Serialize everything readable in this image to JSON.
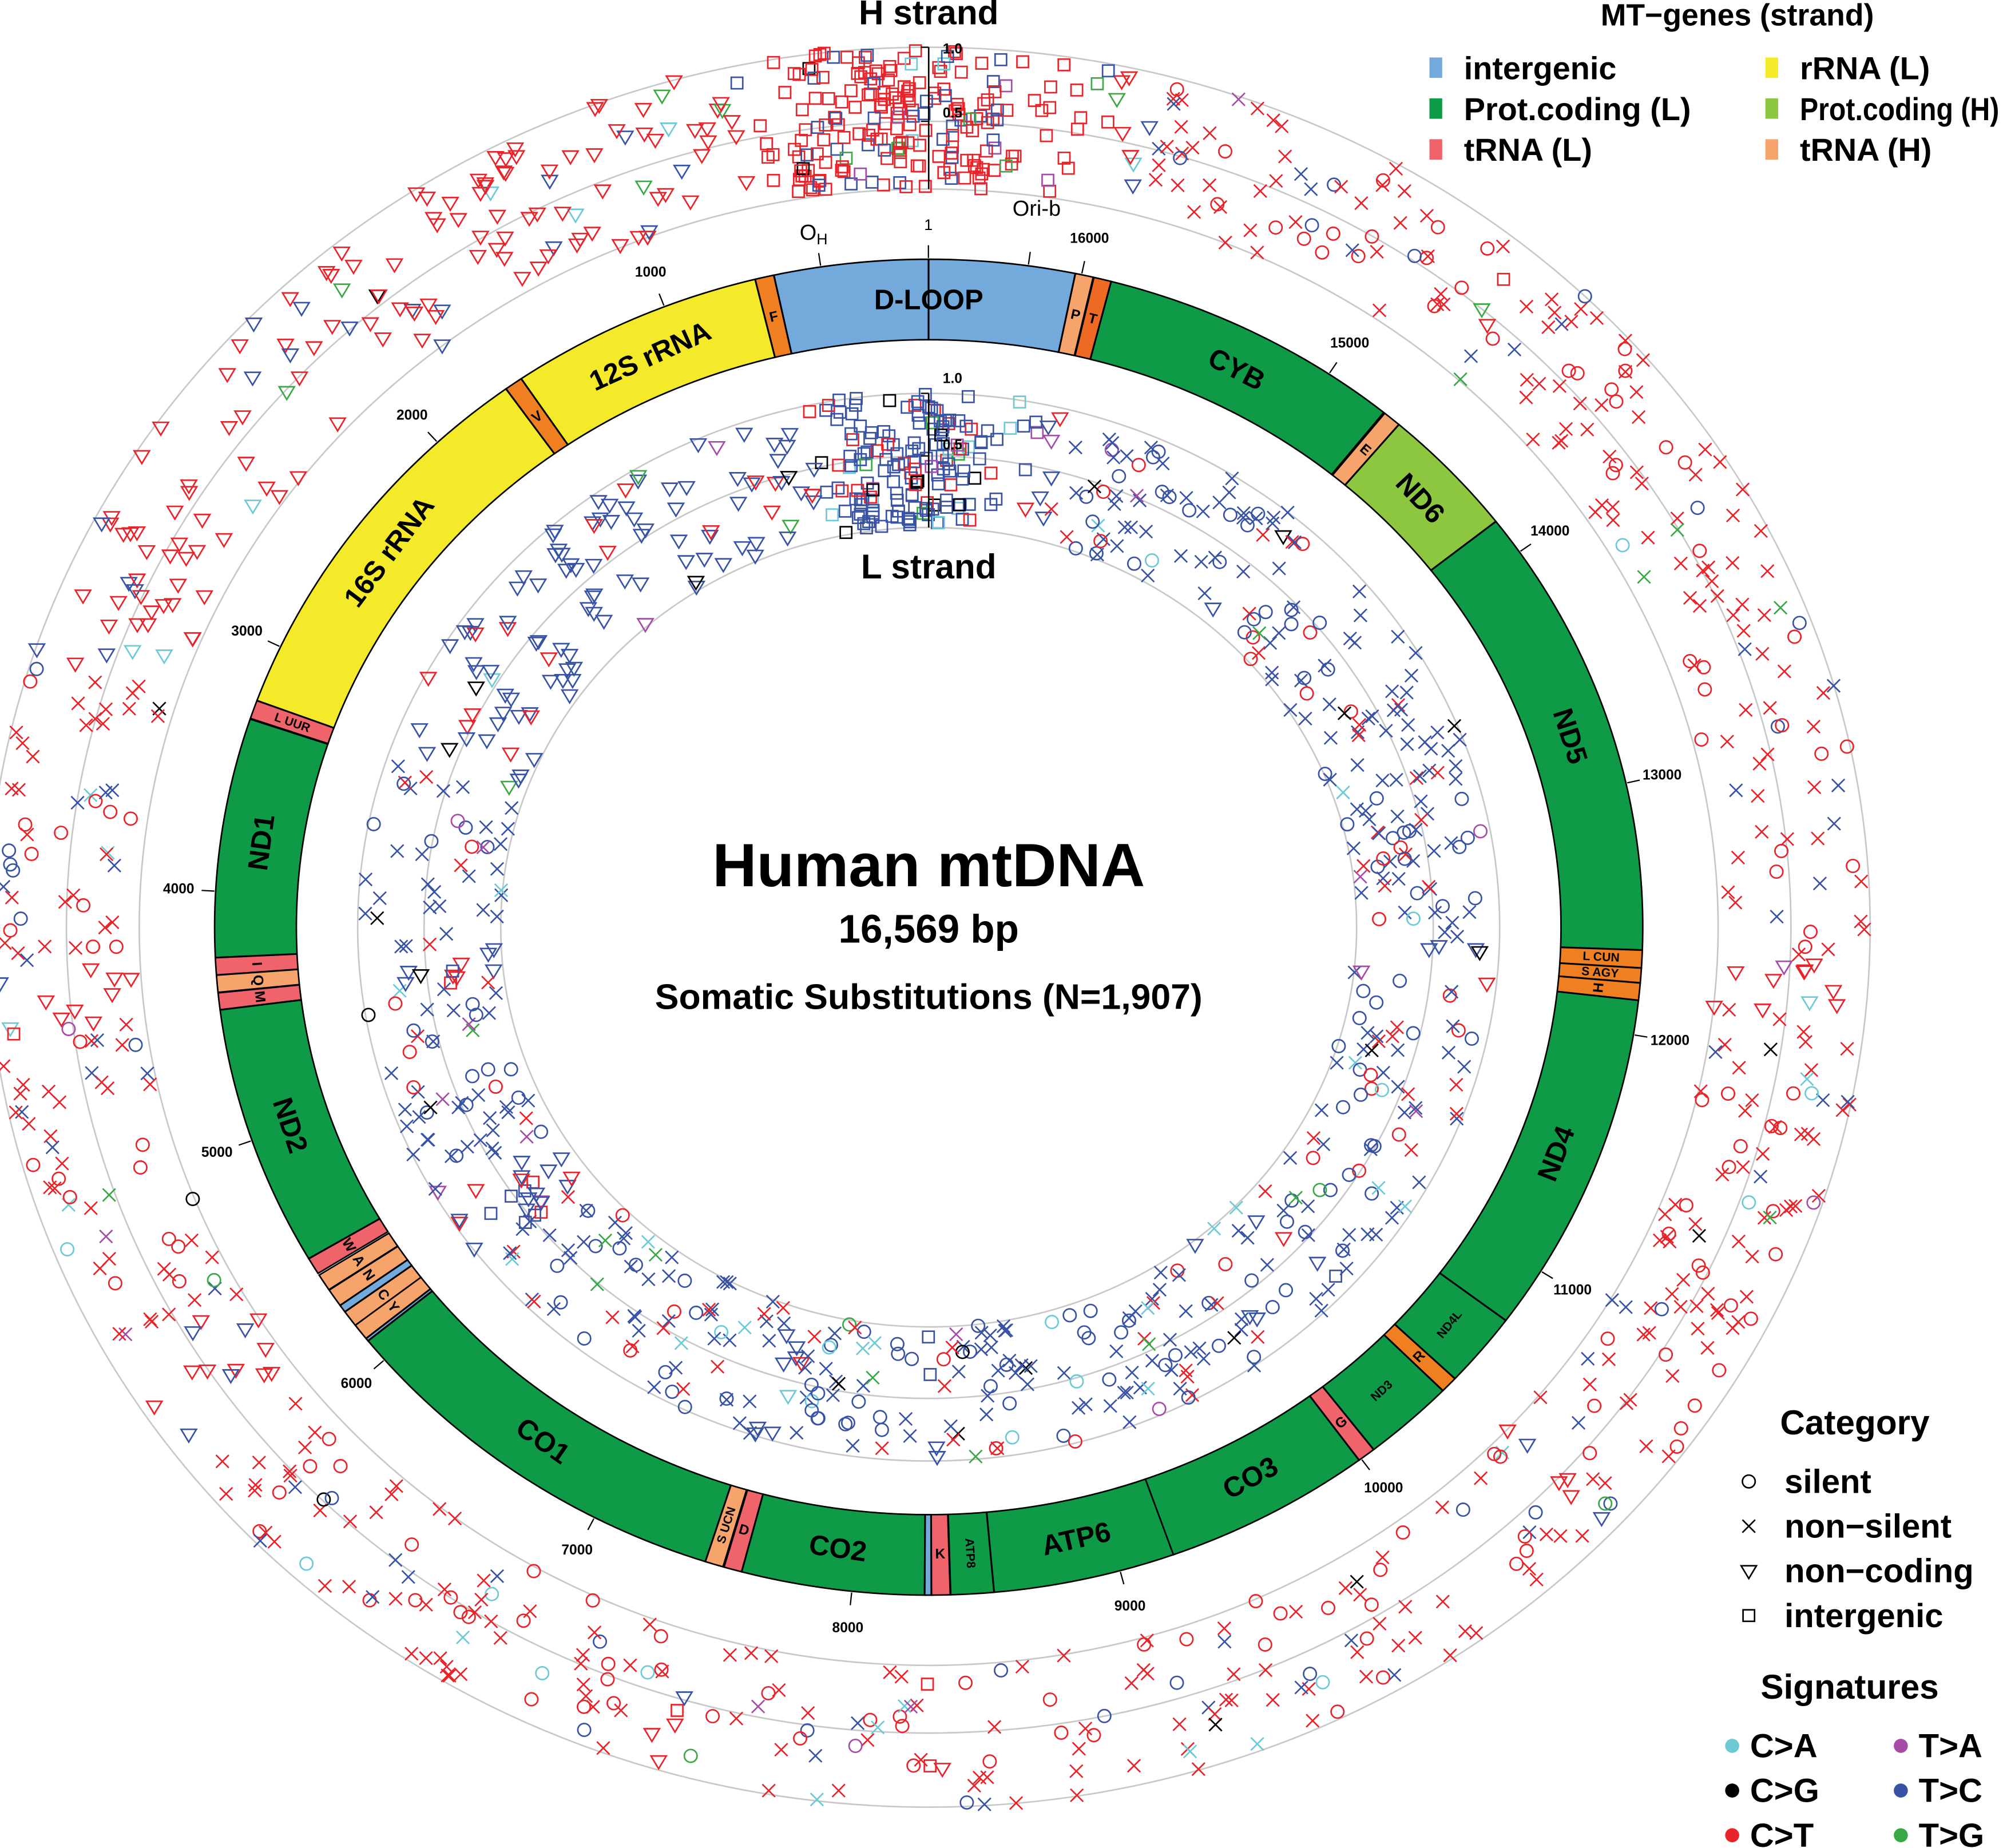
{
  "titles": {
    "h_strand": "H strand",
    "l_strand": "L strand",
    "main": "Human mtDNA",
    "length": "16,569 bp",
    "subtitle": "Somatic Substitutions (N=1,907)"
  },
  "scale_labels": {
    "top": "1.0",
    "mid": "0.5"
  },
  "landmarks": [
    {
      "label": "O",
      "sub": "H",
      "pos": 400
    },
    {
      "label": "1",
      "sub": "",
      "pos": 1
    },
    {
      "label": "Ori-b",
      "sub": "",
      "pos": 16200
    }
  ],
  "chart_data": {
    "type": "circos",
    "genome_length": 16569,
    "position_ticks": [
      "1000",
      "2000",
      "3000",
      "4000",
      "5000",
      "6000",
      "7000",
      "8000",
      "9000",
      "10000",
      "11000",
      "12000",
      "13000",
      "14000",
      "15000",
      "16000"
    ],
    "track_scale": [
      0,
      1.0
    ],
    "tracks": [
      "H strand",
      "L strand"
    ],
    "genes": [
      {
        "label": "D-LOOP",
        "start": 16024,
        "end": 16569,
        "color": "#74a9db",
        "big": true
      },
      {
        "label": "",
        "start": 1,
        "end": 576,
        "color": "#74a9db"
      },
      {
        "label": "F",
        "start": 577,
        "end": 647,
        "color": "#f07f22"
      },
      {
        "label": "12S rRNA",
        "start": 648,
        "end": 1601,
        "color": "#f5ea2a",
        "big": true
      },
      {
        "label": "V",
        "start": 1602,
        "end": 1670,
        "color": "#f07f22"
      },
      {
        "label": "16S rRNA",
        "start": 1671,
        "end": 3229,
        "color": "#f5ea2a",
        "big": true
      },
      {
        "label": "L UUR",
        "start": 3230,
        "end": 3304,
        "color": "#ef646a"
      },
      {
        "label": "ND1",
        "start": 3307,
        "end": 4262,
        "color": "#0f9a48",
        "big": true
      },
      {
        "label": "I",
        "start": 4263,
        "end": 4331,
        "color": "#ef646a"
      },
      {
        "label": "Q",
        "start": 4332,
        "end": 4400,
        "color": "#f6a46c"
      },
      {
        "label": "M",
        "start": 4402,
        "end": 4469,
        "color": "#ef646a"
      },
      {
        "label": "ND2",
        "start": 4470,
        "end": 5511,
        "color": "#0f9a48",
        "big": true
      },
      {
        "label": "W",
        "start": 5512,
        "end": 5579,
        "color": "#ef646a"
      },
      {
        "label": "A",
        "start": 5587,
        "end": 5655,
        "color": "#f6a46c"
      },
      {
        "label": "N",
        "start": 5657,
        "end": 5729,
        "color": "#f6a46c"
      },
      {
        "label": "",
        "start": 5730,
        "end": 5760,
        "color": "#74a9db"
      },
      {
        "label": "C",
        "start": 5761,
        "end": 5826,
        "color": "#f6a46c"
      },
      {
        "label": "Y",
        "start": 5826,
        "end": 5891,
        "color": "#f6a46c"
      },
      {
        "label": "",
        "start": 5892,
        "end": 5903,
        "color": "#74a9db"
      },
      {
        "label": "CO1",
        "start": 5904,
        "end": 7445,
        "color": "#0f9a48",
        "big": true
      },
      {
        "label": "S UCN",
        "start": 7446,
        "end": 7514,
        "color": "#f6a46c"
      },
      {
        "label": "D",
        "start": 7518,
        "end": 7585,
        "color": "#ef646a"
      },
      {
        "label": "CO2",
        "start": 7586,
        "end": 8269,
        "color": "#0f9a48",
        "big": true
      },
      {
        "label": "",
        "start": 8270,
        "end": 8294,
        "color": "#74a9db"
      },
      {
        "label": "K",
        "start": 8295,
        "end": 8364,
        "color": "#ef646a"
      },
      {
        "label": "ATP8",
        "start": 8366,
        "end": 8526,
        "color": "#0f9a48"
      },
      {
        "label": "ATP6",
        "start": 8527,
        "end": 9207,
        "color": "#0f9a48",
        "big": true
      },
      {
        "label": "CO3",
        "start": 9207,
        "end": 9990,
        "color": "#0f9a48",
        "big": true
      },
      {
        "label": "G",
        "start": 9991,
        "end": 10058,
        "color": "#ef646a"
      },
      {
        "label": "ND3",
        "start": 10059,
        "end": 10404,
        "color": "#0f9a48"
      },
      {
        "label": "R",
        "start": 10405,
        "end": 10469,
        "color": "#f07f22"
      },
      {
        "label": "ND4L",
        "start": 10470,
        "end": 10766,
        "color": "#0f9a48"
      },
      {
        "label": "ND4",
        "start": 10767,
        "end": 12137,
        "color": "#0f9a48",
        "big": true
      },
      {
        "label": "H",
        "start": 12138,
        "end": 12206,
        "color": "#f07f22"
      },
      {
        "label": "S AGY",
        "start": 12207,
        "end": 12265,
        "color": "#f07f22"
      },
      {
        "label": "L CUN",
        "start": 12266,
        "end": 12336,
        "color": "#f07f22"
      },
      {
        "label": "ND5",
        "start": 12337,
        "end": 14148,
        "color": "#0f9a48",
        "big": true
      },
      {
        "label": "ND6",
        "start": 14149,
        "end": 14673,
        "color": "#8dc63f",
        "big": true
      },
      {
        "label": "E",
        "start": 14674,
        "end": 14742,
        "color": "#f6a46c"
      },
      {
        "label": "CYB",
        "start": 14747,
        "end": 15887,
        "color": "#0f9a48",
        "big": true
      },
      {
        "label": "T",
        "start": 15888,
        "end": 15953,
        "color": "#ee6a24"
      },
      {
        "label": "P",
        "start": 15956,
        "end": 16023,
        "color": "#f6a46c"
      }
    ]
  },
  "legend_genes": {
    "title": "MT−genes (strand)",
    "items": [
      {
        "label": "intergenic",
        "color": "#74a9db"
      },
      {
        "label": "rRNA (L)",
        "color": "#f5ea2a"
      },
      {
        "label": "Prot.coding (L)",
        "color": "#0f9a48"
      },
      {
        "label": "Prot.coding (H)",
        "color": "#8dc63f"
      },
      {
        "label": "tRNA (L)",
        "color": "#ef646a"
      },
      {
        "label": "tRNA (H)",
        "color": "#f6a46c"
      }
    ]
  },
  "legend_category": {
    "title": "Category",
    "items": [
      {
        "label": "silent",
        "icon": "circle"
      },
      {
        "label": "non−silent",
        "icon": "cross"
      },
      {
        "label": "non−coding",
        "icon": "triangle"
      },
      {
        "label": "intergenic",
        "icon": "square"
      }
    ]
  },
  "legend_signatures": {
    "title": "Signatures",
    "items": [
      {
        "label": "C>A",
        "color": "#6cc9d6"
      },
      {
        "label": "T>A",
        "color": "#a64ca6"
      },
      {
        "label": "C>G",
        "color": "#000000"
      },
      {
        "label": "T>C",
        "color": "#3953a4"
      },
      {
        "label": "C>T",
        "color": "#e8232a"
      },
      {
        "label": "T>G",
        "color": "#3aa845"
      }
    ]
  }
}
